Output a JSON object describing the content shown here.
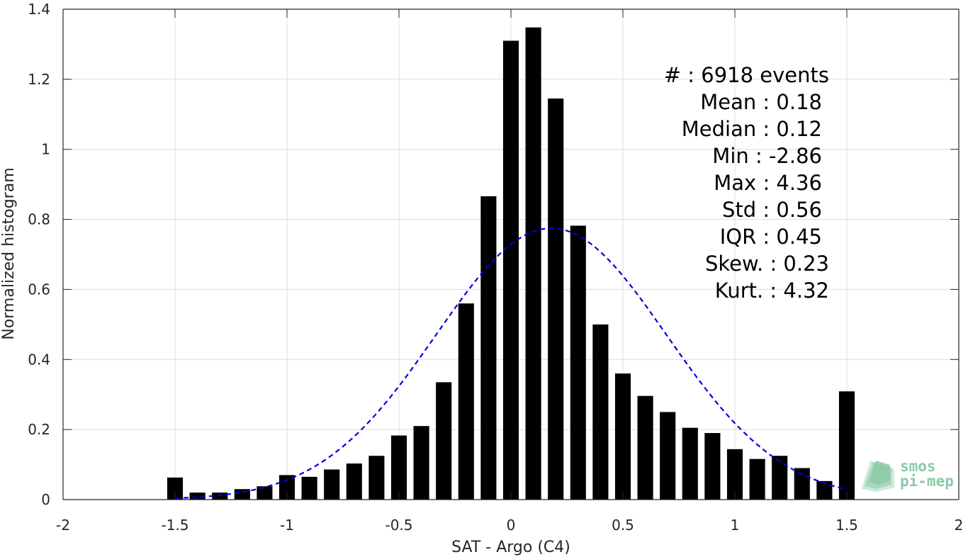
{
  "chart_data": {
    "type": "bar",
    "xlabel": "SAT - Argo (C4)",
    "ylabel": "Normalized histogram",
    "xlim": [
      -2,
      2
    ],
    "ylim": [
      0,
      1.4
    ],
    "grid": true,
    "xticks": [
      "-2",
      "-1.5",
      "-1",
      "-0.5",
      "0",
      "0.5",
      "1",
      "1.5",
      "2"
    ],
    "yticks": [
      "0",
      "0.2",
      "0.4",
      "0.6",
      "0.8",
      "1",
      "1.2",
      "1.4"
    ],
    "bar_color": "#000000",
    "x": [
      -1.5,
      -1.4,
      -1.3,
      -1.2,
      -1.1,
      -1.0,
      -0.9,
      -0.8,
      -0.7,
      -0.6,
      -0.5,
      -0.4,
      -0.3,
      -0.2,
      -0.1,
      0.0,
      0.1,
      0.2,
      0.3,
      0.4,
      0.5,
      0.6,
      0.7,
      0.8,
      0.9,
      1.0,
      1.1,
      1.2,
      1.3,
      1.4,
      1.5
    ],
    "values": [
      0.063,
      0.02,
      0.02,
      0.03,
      0.038,
      0.07,
      0.065,
      0.086,
      0.103,
      0.125,
      0.183,
      0.21,
      0.335,
      0.56,
      0.866,
      1.31,
      1.348,
      1.145,
      0.782,
      0.5,
      0.36,
      0.296,
      0.25,
      0.205,
      0.19,
      0.144,
      0.116,
      0.125,
      0.09,
      0.053,
      0.309
    ],
    "fit_curve": {
      "type": "normal",
      "style": "dashed",
      "color": "#0000e0",
      "mean": 0.18,
      "std": 0.515,
      "x_range": [
        -1.5,
        1.5
      ]
    },
    "annotations": [
      {
        "label": "#  : 6918 events"
      },
      {
        "label": "Mean : 0.18"
      },
      {
        "label": "Median : 0.12"
      },
      {
        "label": "Min : -2.86"
      },
      {
        "label": "Max : 4.36"
      },
      {
        "label": "Std : 0.56"
      },
      {
        "label": "IQR : 0.45"
      },
      {
        "label": "Skew. : 0.23"
      },
      {
        "label": "Kurt. : 4.32"
      }
    ]
  },
  "logo": {
    "line1": "smos",
    "line2": "pi-mep",
    "color": "#8cc9a8"
  }
}
